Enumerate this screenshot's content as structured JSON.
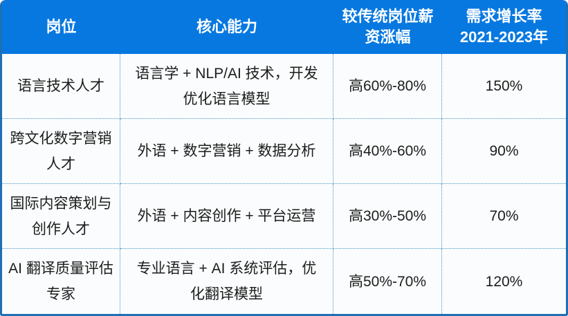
{
  "chart_data": {
    "type": "table",
    "title": "",
    "columns": [
      "岗位",
      "核心能力",
      "较传统岗位薪资涨幅",
      "需求增长率 2021-2023年"
    ],
    "rows": [
      [
        "语言技术人才",
        "语言学 + NLP/AI 技术，开发优化语言模型",
        "高60%-80%",
        "150%"
      ],
      [
        "跨文化数字营销人才",
        "外语 + 数字营销 + 数据分析",
        "高40%-60%",
        "90%"
      ],
      [
        "国际内容策划与创作人才",
        "外语 + 内容创作 + 平台运营",
        "高30%-50%",
        "70%"
      ],
      [
        "AI 翻译质量评估专家",
        "专业语言 + AI 系统评估，优化翻译模型",
        "高50%-70%",
        "120%"
      ]
    ],
    "salary_premium_ranges_pct": [
      [
        60,
        80
      ],
      [
        40,
        60
      ],
      [
        30,
        50
      ],
      [
        50,
        70
      ]
    ],
    "demand_growth_values_pct": [
      150,
      90,
      70,
      120
    ]
  },
  "table": {
    "header": {
      "position": "岗位",
      "core_skills": "核心能力",
      "salary_premium": "较传统岗位薪\n资涨幅",
      "demand_growth": "需求增长率\n2021-2023年"
    },
    "rows": [
      {
        "position": "语言技术人才",
        "core_skills": "语言学 + NLP/AI 技术，开发\n优化语言模型",
        "salary_premium": "高60%-80%",
        "demand_growth": "150%"
      },
      {
        "position": "跨文化数字营销\n人才",
        "core_skills": "外语 + 数字营销 + 数据分析",
        "salary_premium": "高40%-60%",
        "demand_growth": "90%"
      },
      {
        "position": "国际内容策划与\n创作人才",
        "core_skills": "外语 + 内容创作 + 平台运营",
        "salary_premium": "高30%-50%",
        "demand_growth": "70%"
      },
      {
        "position": "AI 翻译质量评估\n专家",
        "core_skills": "专业语言 + AI 系统评估，优\n化翻译模型",
        "salary_premium": "高50%-70%",
        "demand_growth": "120%"
      }
    ]
  },
  "colors": {
    "header_bg": "#0778e0",
    "header_text": "#ffffff",
    "outer_border": "#1f6fb4",
    "cell_divider": "#4a94c4",
    "body_bg": "#fafcfd",
    "body_text": "#1c1c1c"
  }
}
